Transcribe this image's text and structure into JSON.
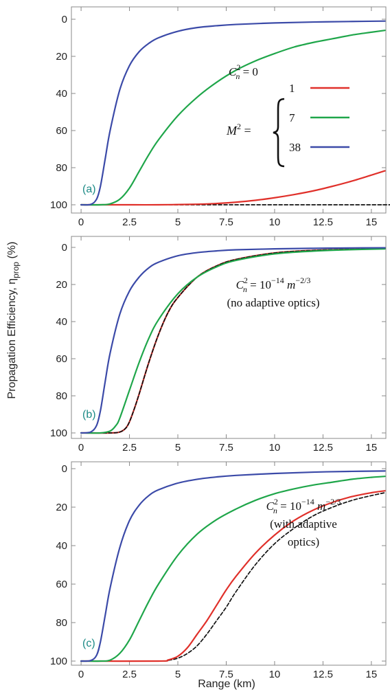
{
  "chart_data": {
    "type": "line",
    "ylabel_main": "Propagation Efficiency, η",
    "ylabel_sub": "prop",
    "ylabel_unit": " (%)",
    "xlabel": "Range (km)",
    "xlim": [
      -0.5,
      15.75
    ],
    "ylim": [
      0,
      100
    ],
    "xticks": [
      0,
      2.5,
      5,
      7.5,
      10,
      12.5,
      15
    ],
    "xtick_labels": [
      "0",
      "2.5",
      "5",
      "7.5",
      "10",
      "12.5",
      "15"
    ],
    "yticks": [
      0,
      20,
      40,
      60,
      80,
      100
    ],
    "ytick_labels": [
      "0",
      "20",
      "40",
      "60",
      "80",
      "100"
    ],
    "grid": false,
    "colors": {
      "m1": "#e0302a",
      "m7": "#1fa64a",
      "m38": "#3b4aa8",
      "ideal": "#111111"
    },
    "legend": {
      "symbol": "M",
      "superscript": "2",
      "equals": " =",
      "entries": [
        {
          "label": "1",
          "color": "#e0302a"
        },
        {
          "label": "7",
          "color": "#1fa64a"
        },
        {
          "label": "38",
          "color": "#3b4aa8"
        }
      ]
    },
    "panels": [
      {
        "tag": "(a)",
        "annotation": [
          {
            "parts": [
              {
                "t": "C",
                "s": "main"
              },
              {
                "t": "2",
                "s": "sup"
              },
              {
                "t": "n",
                "s": "sub"
              },
              {
                "t": " = 0",
                "s": "main"
              }
            ]
          }
        ],
        "series": [
          {
            "key": "ideal",
            "style": "dashed",
            "x": [
              0,
              16
            ],
            "y": [
              100,
              100
            ]
          },
          {
            "key": "m1",
            "style": "solid",
            "x": [
              0,
              2,
              4,
              6,
              7,
              8,
              9,
              10,
              11,
              12,
              13,
              14,
              15,
              15.7
            ],
            "y": [
              100,
              100,
              100,
              99.7,
              99.3,
              98.6,
              97.6,
              96.2,
              94.5,
              92.5,
              90,
              87.2,
              84,
              81.7
            ]
          },
          {
            "key": "m7",
            "style": "solid",
            "x": [
              0,
              1,
              1.5,
              2,
              2.5,
              3,
              3.5,
              4,
              5,
              6,
              7,
              8,
              9,
              10,
              11,
              12,
              13,
              14,
              15,
              15.7
            ],
            "y": [
              100,
              100,
              99.5,
              97,
              91,
              82,
              73,
              65,
              52,
              42,
              34,
              27.5,
              22.5,
              18.5,
              15,
              12.5,
              10.5,
              8.5,
              7,
              6
            ]
          },
          {
            "key": "m38",
            "style": "solid",
            "x": [
              0,
              0.5,
              0.8,
              1,
              1.25,
              1.5,
              2,
              2.5,
              3,
              3.5,
              4,
              5,
              6,
              7,
              8,
              10,
              12,
              14,
              15.7
            ],
            "y": [
              100,
              99.8,
              97,
              90,
              75,
              60,
              38,
              25,
              17.5,
              13,
              10,
              6.5,
              4.5,
              3.5,
              2.8,
              2,
              1.5,
              1.2,
              1
            ]
          }
        ]
      },
      {
        "tag": "(b)",
        "annotation": [
          {
            "parts": [
              {
                "t": "C",
                "s": "main"
              },
              {
                "t": "2",
                "s": "sup"
              },
              {
                "t": "n",
                "s": "sub"
              },
              {
                "t": " = 10",
                "s": "main"
              },
              {
                "t": "−14",
                "s": "sup"
              },
              {
                "t": " m",
                "s": "main"
              },
              {
                "t": "−2/3",
                "s": "sup"
              }
            ]
          },
          {
            "parts": [
              {
                "t": "(no adaptive optics)",
                "s": "main"
              }
            ]
          }
        ],
        "series": [
          {
            "key": "m1",
            "style": "solid",
            "x": [
              0,
              1.5,
              2,
              2.3,
              2.5,
              2.75,
              3,
              3.5,
              4,
              4.5,
              5,
              6,
              7,
              8,
              10,
              12,
              14,
              15.7
            ],
            "y": [
              100,
              100,
              99.5,
              97.5,
              94,
              87,
              79,
              62,
              47,
              35,
              27,
              16,
              10,
              6.5,
              3,
              1.6,
              1,
              0.6
            ]
          },
          {
            "key": "ideal",
            "style": "dashed",
            "x": [
              0,
              1.5,
              2,
              2.3,
              2.5,
              2.75,
              3,
              3.5,
              4,
              4.5,
              5,
              6,
              7,
              8,
              10,
              12,
              14,
              15.7
            ],
            "y": [
              100,
              100,
              99.5,
              97.5,
              94,
              87,
              79,
              62,
              47,
              35,
              27,
              16,
              10,
              6.5,
              3,
              1.6,
              1,
              0.6
            ]
          },
          {
            "key": "m7",
            "style": "solid",
            "x": [
              0,
              1,
              1.5,
              1.8,
              2,
              2.5,
              3,
              3.5,
              4,
              5,
              6,
              7,
              8,
              10,
              12,
              14,
              15.7
            ],
            "y": [
              100,
              100,
              99,
              96,
              92,
              77,
              62,
              49,
              39,
              25,
              16,
              10.5,
              7,
              3.5,
              2,
              1.2,
              0.8
            ]
          },
          {
            "key": "m38",
            "style": "solid",
            "x": [
              0,
              0.5,
              0.8,
              1,
              1.25,
              1.5,
              2,
              2.5,
              3,
              3.5,
              4,
              5,
              6,
              7,
              8,
              10,
              12,
              14,
              15.7
            ],
            "y": [
              100,
              99.5,
              96,
              88,
              72,
              57,
              36,
              23.5,
              16,
              11,
              8,
              4.5,
              2.8,
              1.9,
              1.3,
              0.8,
              0.5,
              0.3,
              0.2
            ]
          }
        ]
      },
      {
        "tag": "(c)",
        "annotation": [
          {
            "parts": [
              {
                "t": "C",
                "s": "main"
              },
              {
                "t": "2",
                "s": "sup"
              },
              {
                "t": "n",
                "s": "sub"
              },
              {
                "t": " = 10",
                "s": "main"
              },
              {
                "t": "−14",
                "s": "sup"
              },
              {
                "t": " m",
                "s": "main"
              },
              {
                "t": "−2/3",
                "s": "sup"
              }
            ]
          },
          {
            "parts": [
              {
                "t": "(with adaptive",
                "s": "main"
              }
            ]
          },
          {
            "parts": [
              {
                "t": "optics)",
                "s": "main"
              }
            ]
          }
        ],
        "series": [
          {
            "key": "ideal",
            "style": "dashed",
            "x": [
              0,
              4,
              4.5,
              5,
              5.5,
              6,
              6.5,
              7,
              7.5,
              8,
              9,
              10,
              11,
              12,
              13,
              14,
              15,
              15.7
            ],
            "y": [
              100,
              100,
              99.6,
              98.5,
              96,
              92,
              86,
              79,
              72,
              64,
              50,
              39,
              31,
              24.5,
              20,
              16.5,
              14,
              12.5
            ]
          },
          {
            "key": "m1",
            "style": "solid",
            "x": [
              0,
              4,
              4.5,
              5,
              5.5,
              6,
              6.5,
              7,
              7.5,
              8,
              9,
              10,
              11,
              12,
              13,
              14,
              15,
              15.7
            ],
            "y": [
              100,
              100,
              99.4,
              97.5,
              93,
              86,
              79,
              71,
              63,
              56,
              44,
              34.5,
              27,
              21.5,
              17.5,
              14.5,
              12.5,
              11.5
            ]
          },
          {
            "key": "m7",
            "style": "solid",
            "x": [
              0,
              1,
              1.5,
              2,
              2.5,
              3,
              3.5,
              4,
              5,
              6,
              7,
              8,
              9,
              10,
              11,
              12,
              13,
              14,
              15,
              15.7
            ],
            "y": [
              100,
              100,
              99.5,
              96,
              89,
              79,
              69,
              60,
              45,
              34,
              26.5,
              21,
              16.5,
              13,
              10.5,
              8.5,
              7,
              5.5,
              4.5,
              4
            ]
          },
          {
            "key": "m38",
            "style": "solid",
            "x": [
              0,
              0.5,
              0.8,
              1,
              1.25,
              1.5,
              2,
              2.5,
              3,
              3.5,
              4,
              5,
              6,
              7,
              8,
              10,
              12,
              14,
              15.7
            ],
            "y": [
              100,
              99.7,
              97,
              90,
              76,
              62,
              41,
              27,
              19,
              14,
              11,
              7.5,
              5.5,
              4.3,
              3.5,
              2.5,
              1.8,
              1.4,
              1.2
            ]
          }
        ]
      }
    ]
  }
}
